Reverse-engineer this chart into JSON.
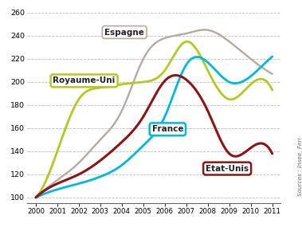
{
  "years": [
    2000,
    2001,
    2002,
    2003,
    2004,
    2005,
    2006,
    2007,
    2008,
    2009,
    2010,
    2011
  ],
  "espagne": [
    100,
    115,
    130,
    150,
    175,
    220,
    238,
    242,
    245,
    235,
    220,
    207
  ],
  "royaume_uni": [
    100,
    140,
    185,
    195,
    198,
    200,
    210,
    235,
    210,
    185,
    198,
    193
  ],
  "france": [
    100,
    107,
    112,
    118,
    128,
    145,
    170,
    215,
    217,
    200,
    205,
    222
  ],
  "etats_unis": [
    100,
    112,
    120,
    132,
    148,
    170,
    201,
    202,
    175,
    138,
    143,
    138
  ],
  "espagne_color": "#b5aaa0",
  "royaume_uni_color": "#b5c820",
  "france_color": "#00b8e0",
  "etats_unis_color": "#8b1515",
  "ylim": [
    95,
    265
  ],
  "yticks": [
    100,
    120,
    140,
    160,
    180,
    200,
    220,
    240,
    260
  ],
  "background_color": "#ffffff",
  "grid_color": "#bbbbbb",
  "source_text": "Sources : Insee, Feri"
}
